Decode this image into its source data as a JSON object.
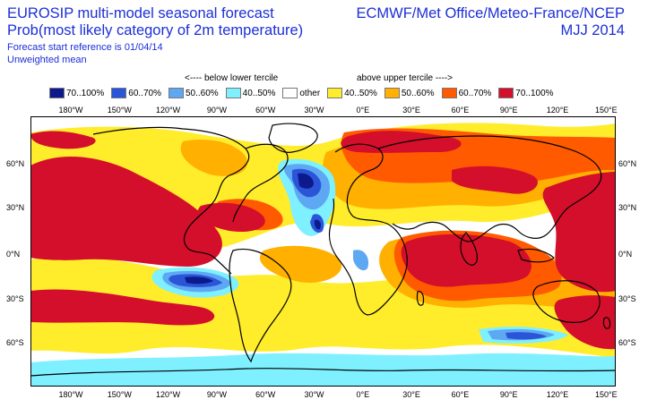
{
  "title": {
    "line1": "EUROSIP multi-model seasonal forecast",
    "line2": "Prob(most likely category of 2m temperature)",
    "line3": "Forecast start reference is 01/04/14",
    "line4": "Unweighted mean",
    "right1": "ECMWF/Met Office/Meteo-France/NCEP",
    "right2": "MJJ 2014"
  },
  "legend": {
    "below_label": "<---- below lower tercile",
    "above_label": "above upper tercile ---->",
    "items": [
      {
        "label": "70..100%",
        "color": "#0d1a8c"
      },
      {
        "label": "60..70%",
        "color": "#2b55d9"
      },
      {
        "label": "50..60%",
        "color": "#5ea7f2"
      },
      {
        "label": "40..50%",
        "color": "#7ff0ff"
      },
      {
        "label": "other",
        "color": "#ffffff"
      },
      {
        "label": "40..50%",
        "color": "#ffec2b"
      },
      {
        "label": "50..60%",
        "color": "#ffb000"
      },
      {
        "label": "60..70%",
        "color": "#ff5a00"
      },
      {
        "label": "70..100%",
        "color": "#d40f2b"
      }
    ]
  },
  "axes": {
    "lon_labels": [
      "180°W",
      "150°W",
      "120°W",
      "90°W",
      "60°W",
      "30°W",
      "0°E",
      "30°E",
      "60°E",
      "90°E",
      "120°E",
      "150°E"
    ],
    "lat_labels": [
      "60°N",
      "30°N",
      "0°N",
      "30°S",
      "60°S"
    ]
  }
}
